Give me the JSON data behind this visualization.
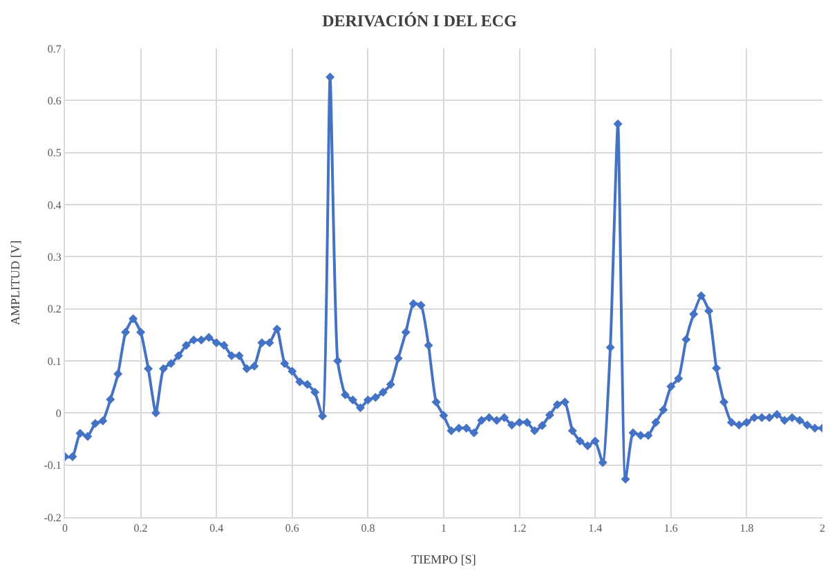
{
  "chart_data": {
    "type": "line",
    "title": "DERIVACIÓN I DEL ECG",
    "xlabel": "TIEMPO [S]",
    "ylabel": "AMPLITUD [V]",
    "x": [
      0,
      0.02,
      0.04,
      0.06,
      0.08,
      0.1,
      0.12,
      0.14,
      0.16,
      0.18,
      0.2,
      0.22,
      0.24,
      0.26,
      0.28,
      0.3,
      0.32,
      0.34,
      0.36,
      0.38,
      0.4,
      0.42,
      0.44,
      0.46,
      0.48,
      0.5,
      0.52,
      0.54,
      0.56,
      0.58,
      0.6,
      0.62,
      0.64,
      0.66,
      0.68,
      0.7,
      0.72,
      0.74,
      0.76,
      0.78,
      0.8,
      0.82,
      0.84,
      0.86,
      0.88,
      0.9,
      0.92,
      0.94,
      0.96,
      0.98,
      1,
      1.02,
      1.04,
      1.06,
      1.08,
      1.1,
      1.12,
      1.14,
      1.16,
      1.18,
      1.2,
      1.22,
      1.24,
      1.26,
      1.28,
      1.3,
      1.32,
      1.34,
      1.36,
      1.38,
      1.4,
      1.42,
      1.44,
      1.46,
      1.48,
      1.5,
      1.52,
      1.54,
      1.56,
      1.58,
      1.6,
      1.62,
      1.64,
      1.66,
      1.68,
      1.7,
      1.72,
      1.74,
      1.76,
      1.78,
      1.8,
      1.82,
      1.84,
      1.86,
      1.88,
      1.9,
      1.92,
      1.94,
      1.96,
      1.98,
      2
    ],
    "series": [
      {
        "color": "#4472c4",
        "values": [
          -0.084,
          -0.084,
          -0.039,
          -0.045,
          -0.02,
          -0.015,
          0.026,
          0.075,
          0.155,
          0.181,
          0.155,
          0.085,
          0.0,
          0.085,
          0.095,
          0.11,
          0.13,
          0.14,
          0.14,
          0.145,
          0.135,
          0.13,
          0.11,
          0.11,
          0.085,
          0.09,
          0.135,
          0.135,
          0.161,
          0.095,
          0.08,
          0.06,
          0.055,
          0.04,
          -0.006,
          0.645,
          0.1,
          0.035,
          0.025,
          0.01,
          0.025,
          0.03,
          0.04,
          0.055,
          0.105,
          0.155,
          0.21,
          0.207,
          0.13,
          0.021,
          -0.005,
          -0.034,
          -0.029,
          -0.029,
          -0.038,
          -0.014,
          -0.009,
          -0.014,
          -0.009,
          -0.023,
          -0.018,
          -0.018,
          -0.034,
          -0.024,
          -0.004,
          0.016,
          0.021,
          -0.034,
          -0.054,
          -0.063,
          -0.054,
          -0.095,
          0.126,
          0.555,
          -0.127,
          -0.038,
          -0.043,
          -0.043,
          -0.018,
          0.006,
          0.051,
          0.066,
          0.141,
          0.19,
          0.225,
          0.196,
          0.086,
          0.021,
          -0.018,
          -0.023,
          -0.018,
          -0.009,
          -0.009,
          -0.009,
          -0.003,
          -0.014,
          -0.009,
          -0.014,
          -0.023,
          -0.029,
          -0.029
        ]
      }
    ],
    "xlim": [
      0,
      2
    ],
    "xticks": [
      0,
      0.2,
      0.4,
      0.6,
      0.8,
      1,
      1.2,
      1.4,
      1.6,
      1.8,
      2
    ],
    "ylim": [
      -0.2,
      0.7
    ],
    "yticks": [
      -0.2,
      -0.1,
      0,
      0.1,
      0.2,
      0.3,
      0.4,
      0.5,
      0.6,
      0.7
    ],
    "grid": true,
    "marker": "diamond",
    "line_style": "solid"
  }
}
